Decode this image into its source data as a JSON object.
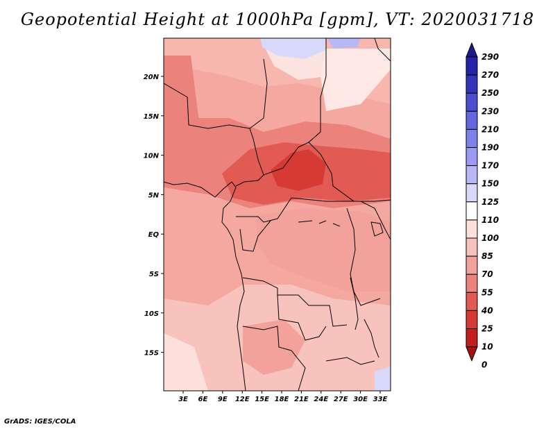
{
  "title": "Geopotential Height at 1000hPa [gpm], VT: 2020031718",
  "credit": "GrADS: IGES/COLA",
  "map": {
    "lat_ticks": [
      "20N",
      "15N",
      "10N",
      "5N",
      "EQ",
      "5S",
      "10S",
      "15S"
    ],
    "lon_ticks": [
      "3E",
      "6E",
      "9E",
      "12E",
      "15E",
      "18E",
      "21E",
      "24E",
      "27E",
      "30E",
      "33E"
    ]
  },
  "colorbar": {
    "levels": [
      "290",
      "270",
      "250",
      "230",
      "210",
      "190",
      "170",
      "150",
      "125",
      "110",
      "100",
      "85",
      "70",
      "55",
      "40",
      "25",
      "10",
      "0"
    ],
    "colors": [
      "#1a1a8c",
      "#2323a8",
      "#3434bb",
      "#4d4dcf",
      "#6666de",
      "#8080ea",
      "#9a9af2",
      "#b8b8f7",
      "#d8d8fb",
      "#ffffff",
      "#fde0dc",
      "#f9c3bd",
      "#f2a29b",
      "#eb827b",
      "#e25a54",
      "#d63a35",
      "#c21e1e",
      "#a51212"
    ]
  }
}
